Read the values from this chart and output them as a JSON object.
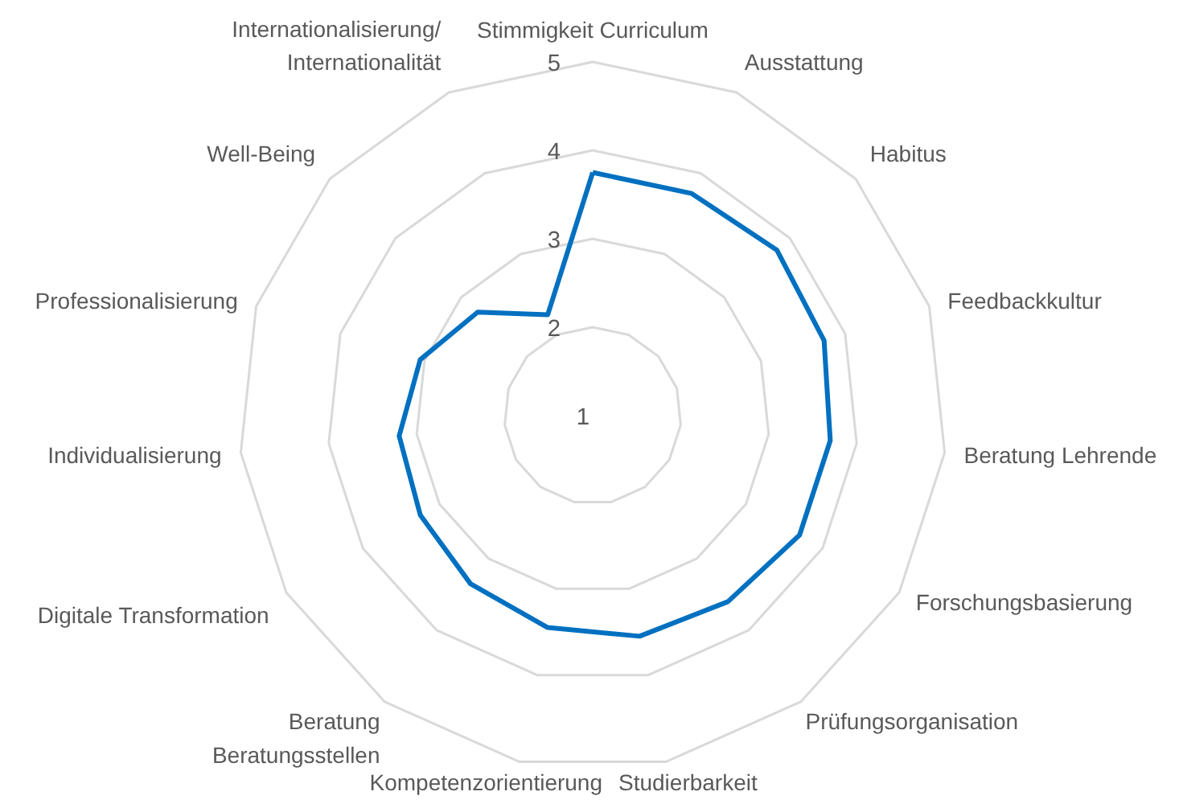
{
  "chart_data": {
    "type": "radar",
    "categories": [
      "Stimmigkeit Curriculum",
      "Ausstattung",
      "Habitus",
      "Feedbackkultur",
      "Beratung Lehrende",
      "Forschungsbasierung",
      "Prüfungsorganisation",
      "Studierbarkeit",
      "Kompetenzorientierung",
      "Beratung\nBeratungsstellen",
      "Digitale Transformation",
      "Individualisierung",
      "Professionalisierung",
      "Well-Being",
      "Internationalisierung/\nInternationalität"
    ],
    "series": [
      {
        "color": "#0070c0",
        "values": [
          3.75,
          3.75,
          3.8,
          3.75,
          3.7,
          3.7,
          3.6,
          3.55,
          3.45,
          3.35,
          3.25,
          3.2,
          3.05,
          2.75,
          2.25
        ]
      }
    ],
    "ylim": [
      1,
      5
    ],
    "yticks": [
      1,
      2,
      3,
      4,
      5
    ],
    "grid": true
  }
}
